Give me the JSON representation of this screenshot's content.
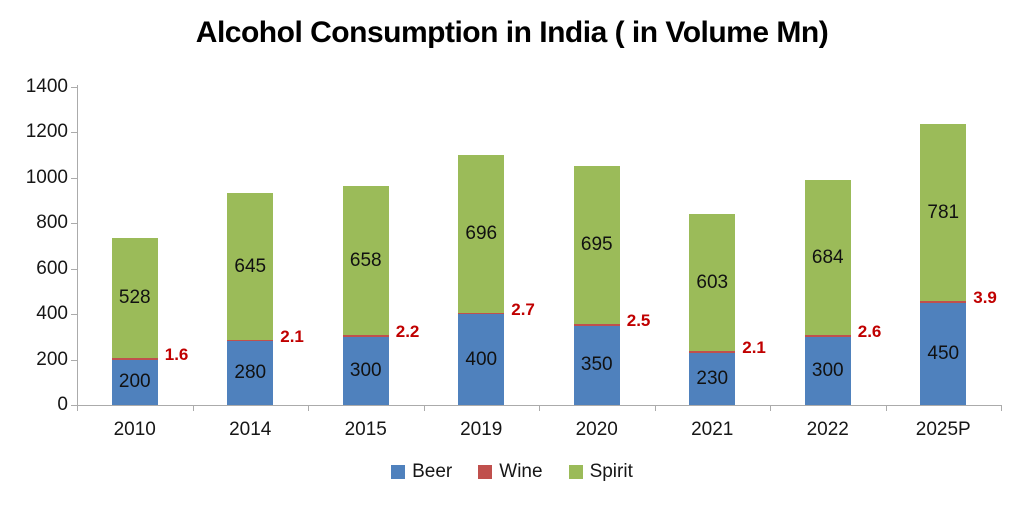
{
  "chart_data": {
    "type": "bar",
    "stacked": true,
    "title": "Alcohol Consumption in India ( in Volume Mn)",
    "categories": [
      "2010",
      "2014",
      "2015",
      "2019",
      "2020",
      "2021",
      "2022",
      "2025P"
    ],
    "series": [
      {
        "name": "Beer",
        "color": "#4F81BD",
        "values": [
          200,
          280,
          300,
          400,
          350,
          230,
          300,
          450
        ],
        "label_placement": "inside"
      },
      {
        "name": "Wine",
        "color": "#C0504D",
        "values": [
          1.6,
          2.1,
          2.2,
          2.7,
          2.5,
          2.1,
          2.6,
          3.9
        ],
        "label_placement": "outside-right",
        "label_color": "#C00000"
      },
      {
        "name": "Spirit",
        "color": "#9BBB59",
        "values": [
          528,
          645,
          658,
          696,
          695,
          603,
          684,
          781
        ],
        "label_placement": "inside"
      }
    ],
    "xlabel": "",
    "ylabel": "",
    "ylim": [
      0,
      1400
    ],
    "y_ticks": [
      0,
      200,
      400,
      600,
      800,
      1000,
      1200,
      1400
    ],
    "grid": false,
    "legend": {
      "position": "bottom",
      "entries": [
        "Beer",
        "Wine",
        "Spirit"
      ]
    },
    "colors": {
      "axis_line": "#ababab",
      "label_text": "#111111",
      "wine_label": "#C00000"
    }
  }
}
